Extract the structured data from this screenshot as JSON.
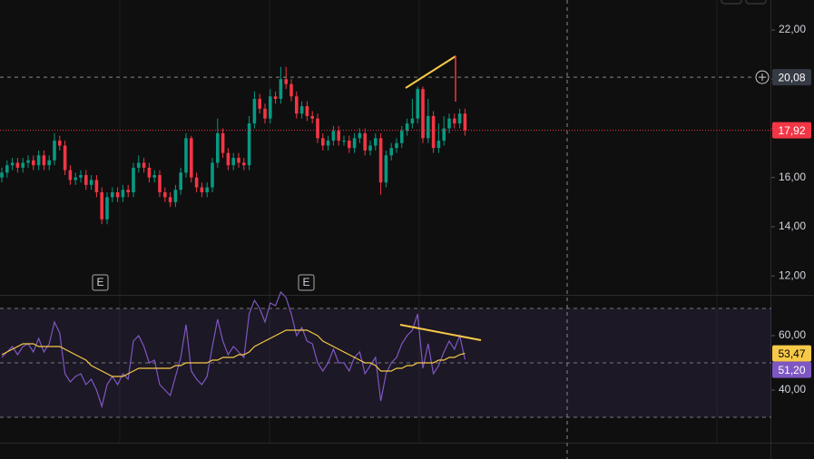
{
  "chart_data": [
    {
      "type": "candlestick",
      "open": [
        16.0,
        16.2,
        16.5,
        16.6,
        16.4,
        16.6,
        16.7,
        16.5,
        16.9,
        16.5,
        16.7,
        17.5,
        17.3,
        16.3,
        15.9,
        16.0,
        16.1,
        15.7,
        15.9,
        15.4,
        14.3,
        15.2,
        15.4,
        15.2,
        15.5,
        15.4,
        16.4,
        16.6,
        16.4,
        16.0,
        16.1,
        15.4,
        15.2,
        15.0,
        15.5,
        16.2,
        17.6,
        16.0,
        15.6,
        15.4,
        15.6,
        16.6,
        17.8,
        17.0,
        16.5,
        16.8,
        16.6,
        16.5,
        18.2,
        19.2,
        18.8,
        18.4,
        19.3,
        19.2,
        20.0,
        19.8,
        19.3,
        18.6,
        18.9,
        18.5,
        18.4,
        17.6,
        17.3,
        17.5,
        17.9,
        17.5,
        17.5,
        17.2,
        17.6,
        17.8,
        17.1,
        17.3,
        17.6,
        15.8,
        16.9,
        17.2,
        17.4,
        17.9,
        18.2,
        18.4,
        19.6,
        17.6,
        18.5,
        17.2,
        17.5,
        18.0,
        18.4,
        18.2,
        18.6
      ],
      "high": [
        16.4,
        16.7,
        16.8,
        16.8,
        16.8,
        16.9,
        16.9,
        17.1,
        17.1,
        16.9,
        17.8,
        17.7,
        17.5,
        16.5,
        16.2,
        16.3,
        16.3,
        16.1,
        16.1,
        15.6,
        15.4,
        15.6,
        15.6,
        15.7,
        15.7,
        16.6,
        16.9,
        16.8,
        16.6,
        16.3,
        16.3,
        15.6,
        15.4,
        15.7,
        16.4,
        17.8,
        17.7,
        16.2,
        15.8,
        15.8,
        16.8,
        18.4,
        18.0,
        17.2,
        17.0,
        17.0,
        16.8,
        18.5,
        19.5,
        19.4,
        19.0,
        19.6,
        19.5,
        20.5,
        20.5,
        20.0,
        19.5,
        19.1,
        19.1,
        18.7,
        18.6,
        17.8,
        17.7,
        18.1,
        18.1,
        17.7,
        17.7,
        17.8,
        18.0,
        18.0,
        17.5,
        17.8,
        17.8,
        17.1,
        17.4,
        17.6,
        18.1,
        18.4,
        19.2,
        19.7,
        19.7,
        19.2,
        18.7,
        18.2,
        18.5,
        18.6,
        18.6,
        18.8,
        18.8
      ],
      "low": [
        15.8,
        16.0,
        16.3,
        16.2,
        16.2,
        16.4,
        16.3,
        16.3,
        16.3,
        16.3,
        16.5,
        17.1,
        16.1,
        15.7,
        15.7,
        15.8,
        15.5,
        15.5,
        15.2,
        14.1,
        14.1,
        15.0,
        15.0,
        15.0,
        15.2,
        15.2,
        16.2,
        16.2,
        15.8,
        15.8,
        15.2,
        15.0,
        14.8,
        14.8,
        15.3,
        16.0,
        15.8,
        15.4,
        15.2,
        15.2,
        15.4,
        16.4,
        16.8,
        16.3,
        16.3,
        16.4,
        16.3,
        16.3,
        18.0,
        18.6,
        18.2,
        18.2,
        19.0,
        19.0,
        19.6,
        19.1,
        18.4,
        18.4,
        18.3,
        18.2,
        17.4,
        17.1,
        17.1,
        17.3,
        17.3,
        17.3,
        17.0,
        17.0,
        17.4,
        16.9,
        16.9,
        17.1,
        15.3,
        15.6,
        16.7,
        17.0,
        17.2,
        17.7,
        18.0,
        18.2,
        17.4,
        17.4,
        17.0,
        17.0,
        17.3,
        17.8,
        18.0,
        18.0,
        17.7
      ],
      "close": [
        16.2,
        16.5,
        16.6,
        16.4,
        16.6,
        16.7,
        16.5,
        16.9,
        16.5,
        16.7,
        17.5,
        17.3,
        16.3,
        15.9,
        16.0,
        16.1,
        15.7,
        15.9,
        15.4,
        14.3,
        15.2,
        15.4,
        15.2,
        15.5,
        15.4,
        16.4,
        16.6,
        16.4,
        16.0,
        16.1,
        15.4,
        15.2,
        15.0,
        15.5,
        16.2,
        17.6,
        16.0,
        15.6,
        15.4,
        15.6,
        16.6,
        17.8,
        17.0,
        16.5,
        16.8,
        16.6,
        16.5,
        18.2,
        19.2,
        18.8,
        18.4,
        19.3,
        19.2,
        20.0,
        19.8,
        19.3,
        18.6,
        18.9,
        18.5,
        18.4,
        17.6,
        17.3,
        17.5,
        17.9,
        17.5,
        17.5,
        17.2,
        17.6,
        17.8,
        17.1,
        17.3,
        17.6,
        15.8,
        16.9,
        17.2,
        17.4,
        17.9,
        18.2,
        18.4,
        19.6,
        17.6,
        18.5,
        17.2,
        17.5,
        18.0,
        18.4,
        18.2,
        18.6,
        17.92
      ],
      "up_color": "#089981",
      "down_color": "#f23645",
      "ylim": [
        11.23,
        23.22
      ],
      "yticks": [
        {
          "value": 12,
          "label": "12,00"
        },
        {
          "value": 14,
          "label": "14,00"
        },
        {
          "value": 16,
          "label": "16,00"
        },
        {
          "value": 18,
          "label": "18,00"
        },
        {
          "value": 20,
          "label": "20,00"
        },
        {
          "value": 22,
          "label": "22,00"
        }
      ],
      "last_price": {
        "value": 17.92,
        "label": "17,92"
      },
      "crosshair": {
        "value": 20.08,
        "label": "20,08"
      },
      "events": [
        "E",
        "E"
      ]
    },
    {
      "type": "line",
      "series": [
        {
          "color": "#7e57c2",
          "values": [
            52,
            54,
            56,
            53,
            56,
            57,
            54,
            59,
            54,
            57,
            65,
            61,
            46,
            43,
            45,
            46,
            42,
            44,
            40,
            34,
            42,
            45,
            42,
            46,
            44,
            58,
            60,
            56,
            50,
            51,
            42,
            40,
            38,
            45,
            52,
            64,
            47,
            44,
            42,
            45,
            56,
            66,
            58,
            53,
            56,
            54,
            52,
            68,
            73,
            70,
            65,
            72,
            71,
            76,
            74,
            68,
            60,
            63,
            58,
            57,
            50,
            47,
            50,
            55,
            50,
            50,
            47,
            52,
            54,
            46,
            49,
            52,
            36,
            46,
            50,
            52,
            57,
            60,
            62,
            68,
            48,
            57,
            46,
            49,
            54,
            58,
            55,
            60,
            51.2
          ],
          "last_label": "51,20"
        },
        {
          "color": "#f7c948",
          "values": [
            53,
            54,
            55,
            56,
            57,
            57,
            57,
            56,
            56,
            56,
            56,
            56,
            55,
            54,
            53,
            52,
            51,
            49,
            48,
            47,
            46,
            45,
            45,
            45,
            46,
            47,
            48,
            48,
            48,
            48,
            48,
            48,
            48,
            49,
            49,
            50,
            50,
            50,
            50,
            50,
            51,
            51,
            52,
            52,
            52,
            53,
            53,
            54,
            56,
            57,
            58,
            59,
            60,
            61,
            62,
            62,
            62,
            62,
            62,
            61,
            60,
            58,
            57,
            56,
            55,
            54,
            53,
            52,
            51,
            50,
            50,
            49,
            47,
            47,
            47,
            48,
            48,
            49,
            49,
            50,
            50,
            50,
            50,
            51,
            51,
            52,
            52,
            53,
            53.47
          ],
          "last_label": "53,47"
        }
      ],
      "ylim": [
        20.67,
        74.67
      ],
      "yticks": [
        {
          "value": 40,
          "label": "40,00"
        },
        {
          "value": 60,
          "label": "60,00"
        }
      ],
      "levels": [
        70,
        50,
        30
      ]
    }
  ]
}
